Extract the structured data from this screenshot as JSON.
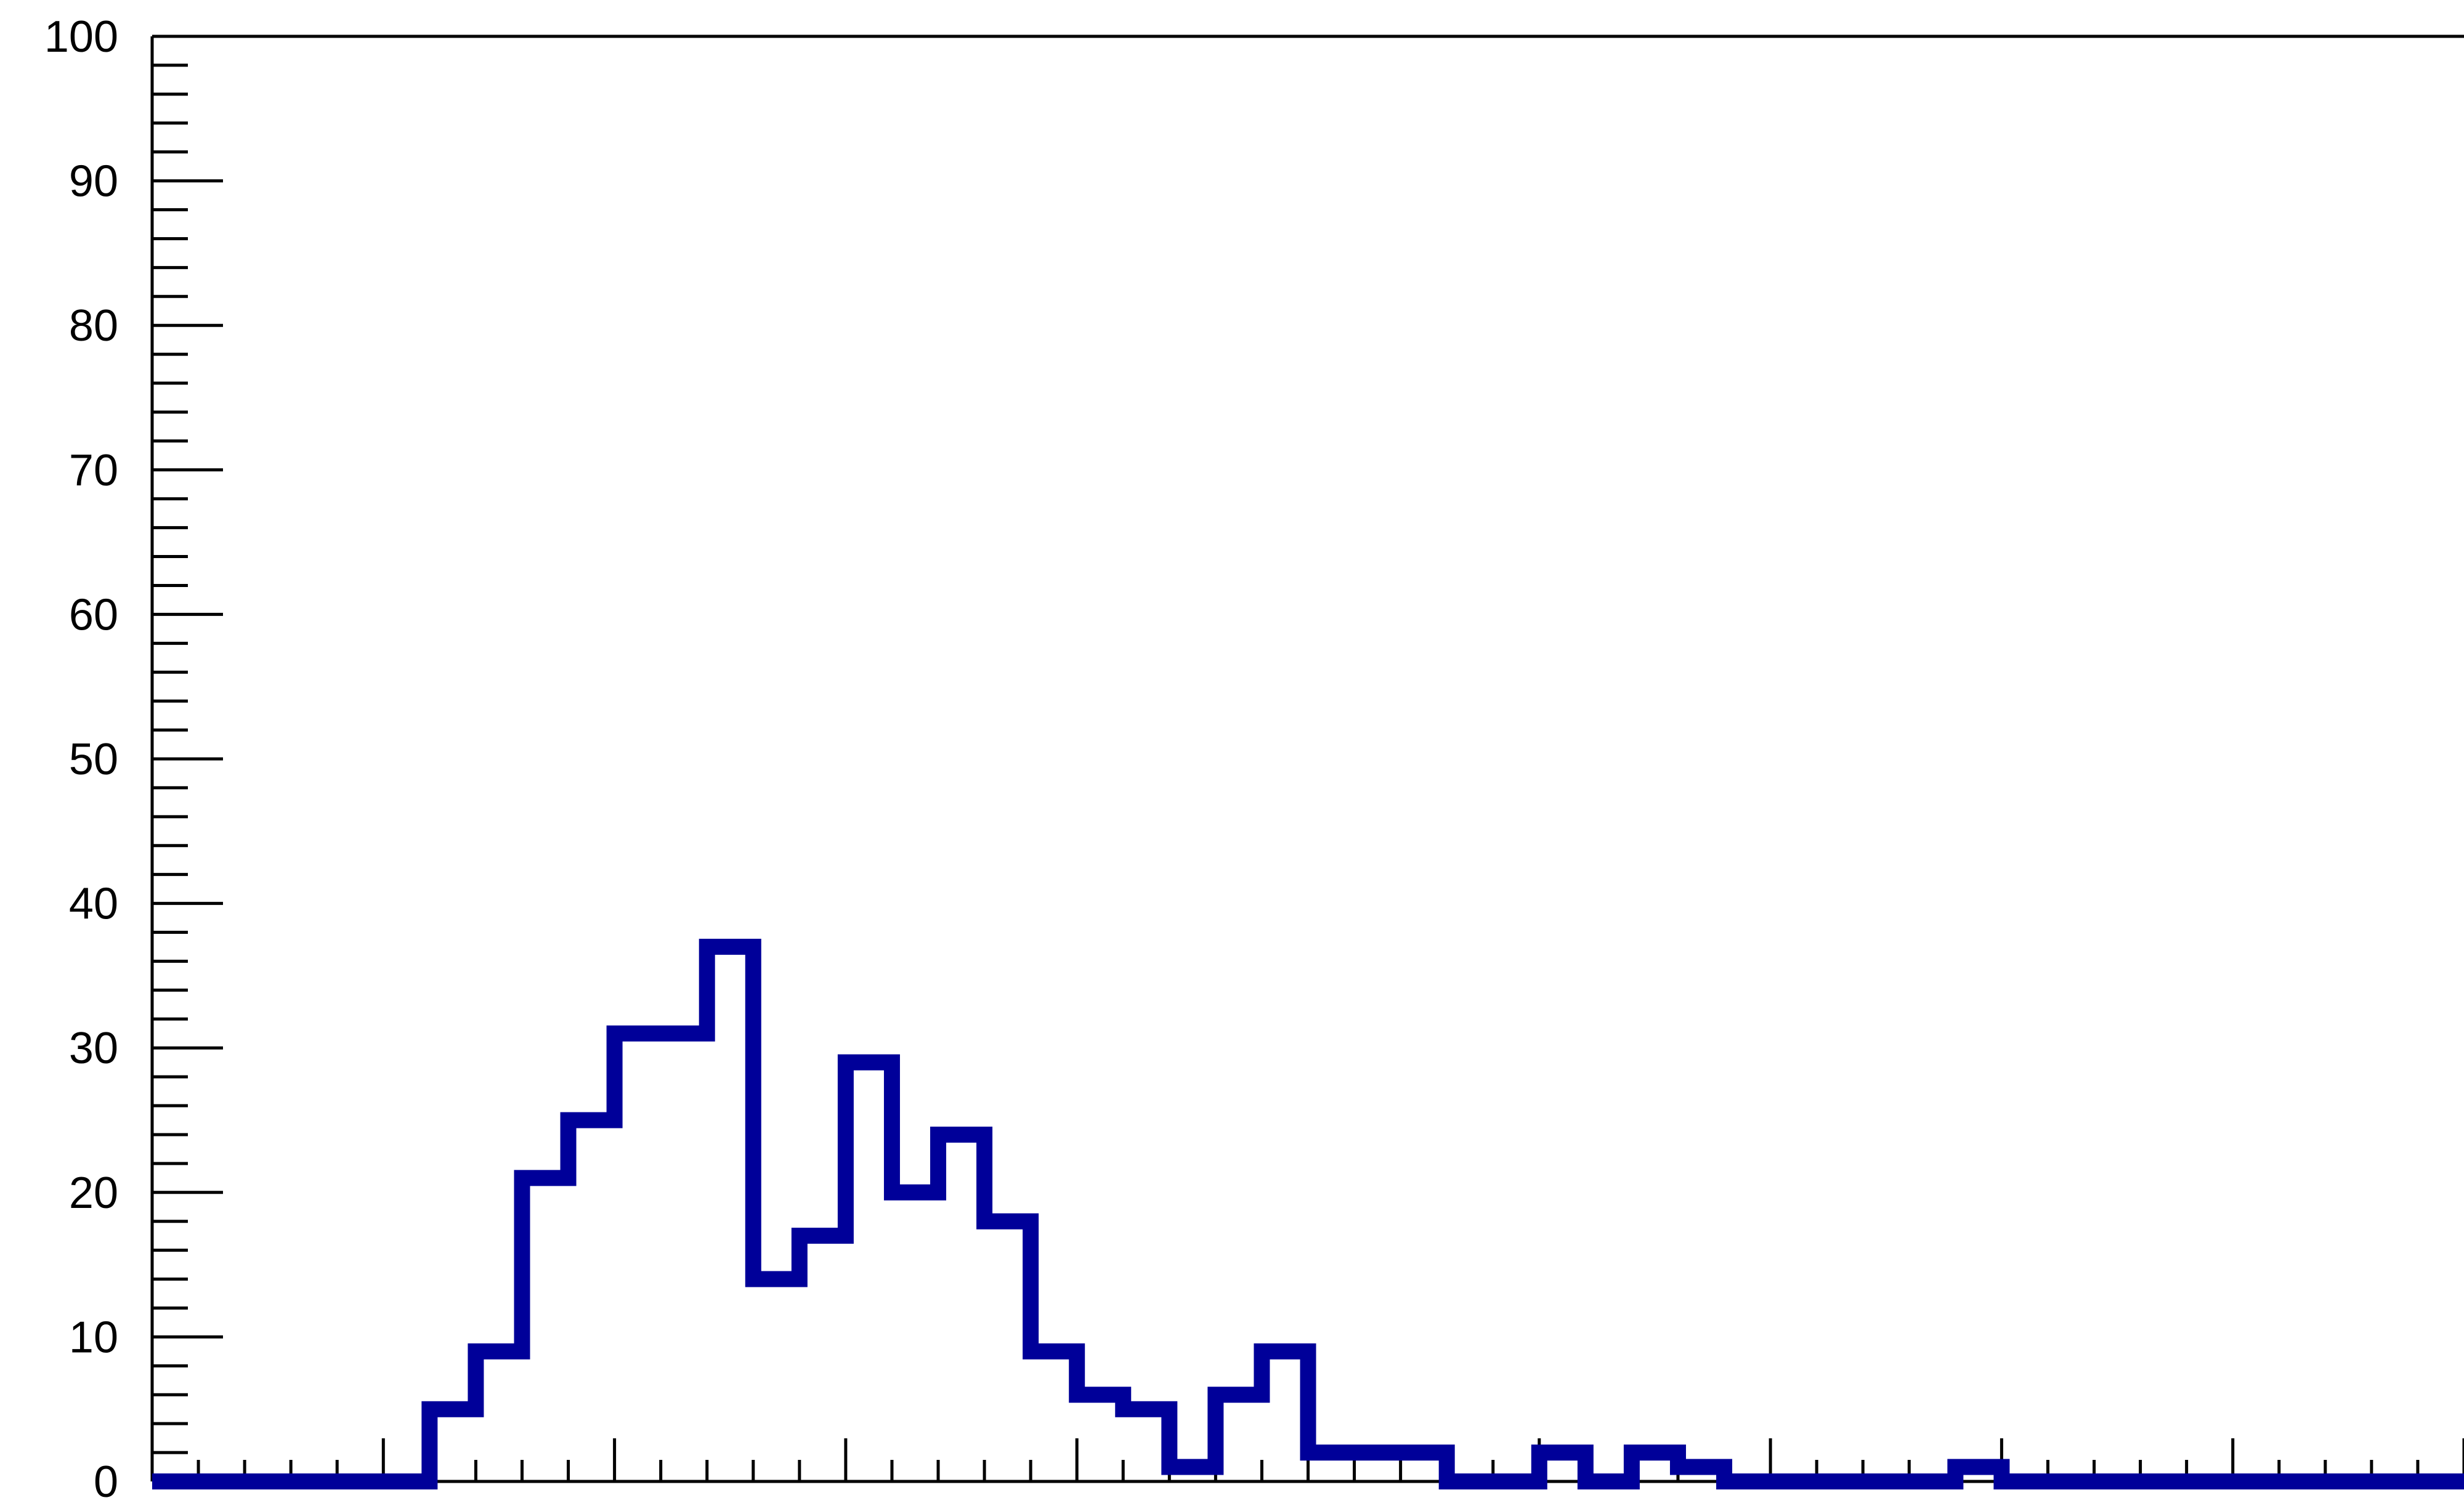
{
  "chart_data": {
    "type": "histogram",
    "title": "",
    "xlabel": "",
    "ylabel": "",
    "ylim": [
      0,
      100
    ],
    "xlim": [
      0,
      50
    ],
    "yticks": [
      0,
      10,
      20,
      30,
      40,
      50,
      60,
      70,
      80,
      90,
      100
    ],
    "ytick_labels": [
      "0",
      "10",
      "20",
      "30",
      "40",
      "50",
      "60",
      "70",
      "80",
      "90",
      "100"
    ],
    "grid": false,
    "legend": false,
    "line_color": "#000099",
    "axis_color": "#000000",
    "bin_edges": [
      0,
      1,
      2,
      3,
      4,
      5,
      6,
      7,
      8,
      9,
      10,
      11,
      12,
      13,
      14,
      15,
      16,
      17,
      18,
      19,
      20,
      21,
      22,
      23,
      24,
      25,
      26,
      27,
      28,
      29,
      30,
      31,
      32,
      33,
      34,
      35,
      36,
      37,
      38,
      39,
      40,
      41,
      42,
      43,
      44,
      45,
      46,
      47,
      48,
      49,
      50
    ],
    "values": [
      0,
      0,
      0,
      0,
      0,
      0,
      5,
      9,
      21,
      25,
      31,
      31,
      37,
      14,
      17,
      29,
      20,
      24,
      18,
      9,
      6,
      5,
      1,
      6,
      9,
      2,
      2,
      2,
      0,
      0,
      2,
      0,
      2,
      1,
      0,
      0,
      0,
      0,
      0,
      1,
      0,
      0,
      0,
      0,
      0,
      0,
      0,
      0,
      0,
      0
    ]
  }
}
